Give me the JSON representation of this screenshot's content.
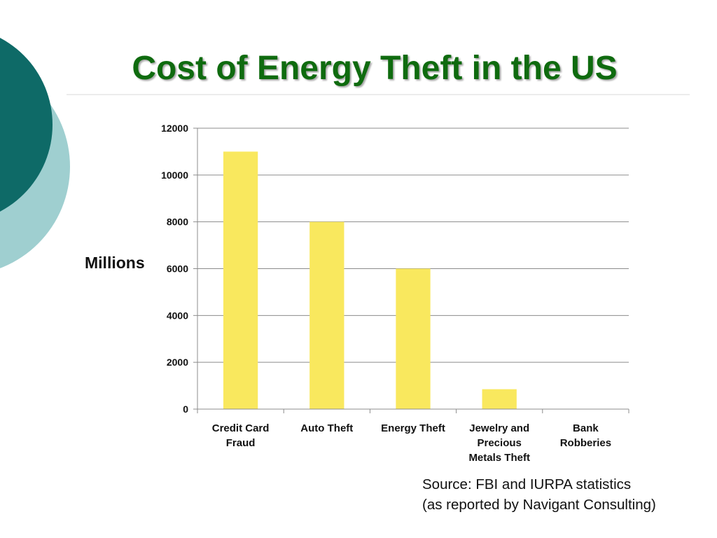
{
  "slide": {
    "title": "Cost of Energy Theft in the US",
    "source_line1": "Source:  FBI and IURPA statistics",
    "source_line2": "(as reported by Navigant Consulting)"
  },
  "colors": {
    "title": "#0f6b0f",
    "bar": "#f9e85e",
    "deco_dark": "#0e6a67",
    "deco_light": "#9fcfd0"
  },
  "chart_data": {
    "type": "bar",
    "title": "",
    "xlabel": "",
    "ylabel": "Millions",
    "categories": [
      [
        "Credit Card",
        "Fraud"
      ],
      [
        "Auto Theft"
      ],
      [
        "Energy Theft"
      ],
      [
        "Jewelry and",
        "Precious",
        "Metals Theft"
      ],
      [
        "Bank",
        "Robberies"
      ]
    ],
    "values": [
      11000,
      8000,
      6000,
      850,
      0
    ],
    "ylim": [
      0,
      12000
    ],
    "yticks": [
      "0",
      "2000",
      "4000",
      "6000",
      "8000",
      "10000",
      "12000"
    ],
    "grid": true,
    "legend": "none"
  }
}
